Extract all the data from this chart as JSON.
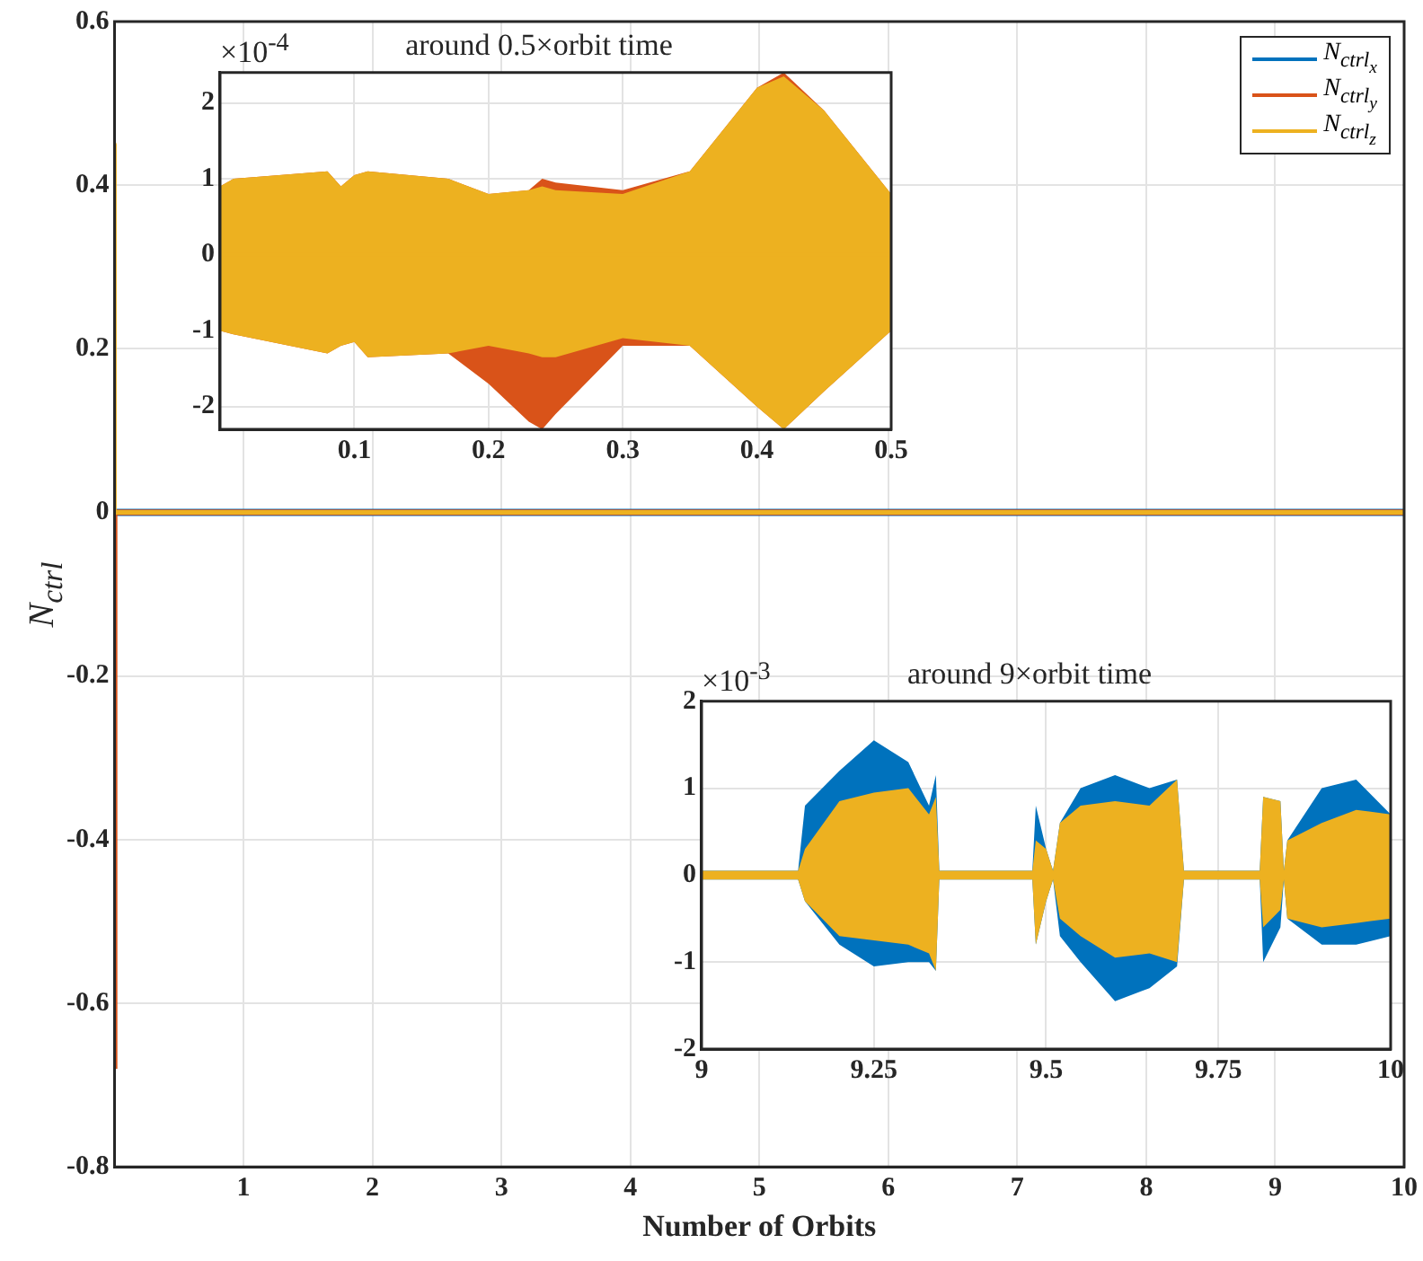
{
  "chart_data": [
    {
      "type": "line",
      "xlabel": "Number of Orbits",
      "ylabel": "N$_{ctrl}$",
      "xlim": [
        0,
        10
      ],
      "xticks": [
        1,
        2,
        3,
        4,
        5,
        6,
        7,
        8,
        9,
        10
      ],
      "ylim": [
        -0.8,
        0.6
      ],
      "yticks": [
        -0.8,
        -0.6,
        -0.4,
        -0.2,
        0,
        0.2,
        0.4,
        0.6
      ],
      "grid": true,
      "legend": "top right",
      "series": [
        {
          "name": "N$_{ctrl}$$_{x}$",
          "color": "#0072bd",
          "x": [
            0,
            10
          ],
          "values": [
            0,
            0
          ]
        },
        {
          "name": "N$_{ctrl}$$_{y}$",
          "color": "#d95319",
          "x": [
            0,
            0,
            10
          ],
          "values": [
            -0.68,
            0,
            0
          ]
        },
        {
          "name": "N$_{ctrl}$$_{z}$",
          "color": "#edb120",
          "x": [
            0,
            0,
            10
          ],
          "values": [
            0.45,
            0,
            0
          ]
        }
      ]
    },
    {
      "type": "line",
      "title": "around 0.5×orbit time",
      "annotations": [
        "×10$^{-4}$"
      ],
      "xlim": [
        0,
        0.5
      ],
      "xticks": [
        0.1,
        0.2,
        0.3,
        0.4,
        0.5
      ],
      "ylim": [
        -2.3,
        2.4
      ],
      "yticks": [
        -2,
        -1,
        0,
        1,
        2
      ],
      "grid": true,
      "series": [
        {
          "color": "#d95319",
          "x": [
            0,
            0.01,
            0.08,
            0.09,
            0.1,
            0.11,
            0.17,
            0.2,
            0.23,
            0.24,
            0.25,
            0.3,
            0.35,
            0.4,
            0.42,
            0.45,
            0.5
          ],
          "values": [
            null,
            null,
            null,
            null,
            null,
            null,
            null,
            null,
            null,
            null,
            null,
            null,
            null,
            null,
            null,
            null,
            null
          ],
          "upper": [
            0.9,
            1.0,
            1.1,
            0.9,
            1.05,
            1.1,
            1.0,
            0.8,
            0.85,
            1.0,
            0.95,
            0.85,
            1.1,
            2.2,
            2.4,
            1.9,
            0.8
          ],
          "lower": [
            -1.0,
            -1.05,
            -1.3,
            -1.2,
            -1.15,
            -1.35,
            -1.3,
            -1.7,
            -2.2,
            -2.3,
            -2.1,
            -1.2,
            -1.2,
            -2.0,
            -2.3,
            -1.8,
            -1.0
          ]
        },
        {
          "color": "#edb120",
          "x": [
            0,
            0.01,
            0.08,
            0.09,
            0.1,
            0.11,
            0.17,
            0.2,
            0.23,
            0.24,
            0.25,
            0.3,
            0.35,
            0.4,
            0.42,
            0.45,
            0.5
          ],
          "values": [
            0,
            0,
            0,
            0,
            0,
            0,
            0,
            0,
            0,
            0,
            0,
            0,
            0,
            0,
            0,
            0,
            0
          ],
          "upper": [
            0.9,
            1.0,
            1.1,
            0.9,
            1.05,
            1.1,
            1.0,
            0.8,
            0.85,
            0.9,
            0.85,
            0.8,
            1.1,
            2.2,
            2.35,
            1.9,
            0.8
          ],
          "lower": [
            -1.0,
            -1.05,
            -1.3,
            -1.2,
            -1.15,
            -1.35,
            -1.3,
            -1.2,
            -1.3,
            -1.35,
            -1.35,
            -1.1,
            -1.2,
            -2.0,
            -2.3,
            -1.8,
            -1.0
          ]
        }
      ]
    },
    {
      "type": "line",
      "title": "around 9×orbit time",
      "annotations": [
        "×10$^{-3}$"
      ],
      "xlim": [
        9,
        10
      ],
      "xticks": [
        9,
        9.25,
        9.5,
        9.75,
        10
      ],
      "ylim": [
        -2,
        2
      ],
      "yticks": [
        -2,
        -1,
        0,
        1,
        2
      ],
      "grid": true,
      "series": [
        {
          "color": "#0072bd",
          "x": [
            9,
            9.14,
            9.15,
            9.2,
            9.25,
            9.3,
            9.33,
            9.34,
            9.345,
            9.48,
            9.485,
            9.5,
            9.51,
            9.52,
            9.55,
            9.6,
            9.65,
            9.69,
            9.7,
            9.81,
            9.815,
            9.84,
            9.845,
            9.85,
            9.9,
            9.95,
            10
          ],
          "values": [
            null,
            null,
            null,
            null,
            null,
            null,
            null,
            null,
            null,
            null,
            null,
            null,
            null,
            null,
            null,
            null,
            null,
            null,
            null,
            null,
            null,
            null,
            null,
            null,
            null,
            null,
            null
          ],
          "upper": [
            0.05,
            0.05,
            0.8,
            1.2,
            1.55,
            1.3,
            0.8,
            1.15,
            0.05,
            0.05,
            0.8,
            0.3,
            0.05,
            0.6,
            1.0,
            1.15,
            1.0,
            1.1,
            0.05,
            0.05,
            0.9,
            0.85,
            0.05,
            0.4,
            1.0,
            1.1,
            0.7
          ],
          "lower": [
            -0.05,
            -0.05,
            -0.3,
            -0.8,
            -1.05,
            -1.0,
            -1.0,
            -1.1,
            -0.05,
            -0.05,
            -0.8,
            -0.3,
            -0.05,
            -0.7,
            -1.0,
            -1.45,
            -1.3,
            -1.05,
            -0.05,
            -0.05,
            -1.0,
            -0.6,
            -0.05,
            -0.5,
            -0.8,
            -0.8,
            -0.7
          ]
        },
        {
          "color": "#edb120",
          "x": [
            9,
            9.14,
            9.15,
            9.2,
            9.25,
            9.3,
            9.33,
            9.34,
            9.345,
            9.48,
            9.485,
            9.5,
            9.51,
            9.52,
            9.55,
            9.6,
            9.65,
            9.69,
            9.7,
            9.81,
            9.815,
            9.84,
            9.845,
            9.85,
            9.9,
            9.95,
            10
          ],
          "values": [
            0,
            0,
            0,
            0,
            0,
            0,
            0,
            0,
            0,
            0,
            0,
            0,
            0,
            0,
            0,
            0,
            0,
            0,
            0,
            0,
            0,
            0,
            0,
            0,
            0,
            0,
            0
          ],
          "upper": [
            0.05,
            0.05,
            0.3,
            0.85,
            0.95,
            1.0,
            0.7,
            0.9,
            0.05,
            0.05,
            0.4,
            0.3,
            0.05,
            0.6,
            0.8,
            0.85,
            0.8,
            1.1,
            0.05,
            0.05,
            0.9,
            0.85,
            0.05,
            0.4,
            0.6,
            0.75,
            0.7
          ],
          "lower": [
            -0.05,
            -0.05,
            -0.3,
            -0.7,
            -0.75,
            -0.8,
            -0.9,
            -1.1,
            -0.05,
            -0.05,
            -0.8,
            -0.3,
            -0.05,
            -0.5,
            -0.7,
            -0.95,
            -0.9,
            -1.0,
            -0.05,
            -0.05,
            -0.6,
            -0.4,
            -0.05,
            -0.5,
            -0.6,
            -0.55,
            -0.5
          ]
        }
      ]
    }
  ]
}
